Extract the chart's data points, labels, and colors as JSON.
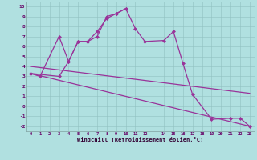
{
  "xlabel": "Windchill (Refroidissement éolien,°C)",
  "line_color": "#993399",
  "bg_color": "#b0e0e0",
  "grid_color": "#90c0c0",
  "xlim": [
    -0.5,
    23.5
  ],
  "ylim": [
    -2.5,
    10.5
  ],
  "xticks": [
    0,
    1,
    2,
    3,
    4,
    5,
    6,
    7,
    8,
    9,
    10,
    11,
    12,
    14,
    15,
    16,
    17,
    18,
    19,
    20,
    21,
    22,
    23
  ],
  "yticks": [
    -2,
    -1,
    0,
    1,
    2,
    3,
    4,
    5,
    6,
    7,
    8,
    9,
    10
  ],
  "line1_x": [
    0,
    1,
    3,
    4,
    5,
    6,
    7,
    8,
    9,
    10,
    11,
    12,
    14,
    15,
    16,
    17,
    19,
    21,
    22,
    23
  ],
  "line1_y": [
    3.3,
    3.0,
    7.0,
    4.5,
    6.5,
    6.5,
    7.0,
    9.0,
    9.3,
    9.8,
    7.8,
    6.5,
    6.6,
    7.5,
    4.3,
    1.2,
    -1.3,
    -1.2,
    -1.2,
    -2.0
  ],
  "line2_x": [
    0,
    3,
    4,
    5,
    6,
    7,
    8,
    9,
    10
  ],
  "line2_y": [
    3.3,
    3.0,
    4.5,
    6.5,
    6.5,
    7.5,
    8.8,
    9.3,
    9.8
  ],
  "line3_x": [
    0,
    23
  ],
  "line3_y": [
    3.3,
    -2.0
  ],
  "line4_x": [
    0,
    23
  ],
  "line4_y": [
    4.0,
    1.3
  ]
}
